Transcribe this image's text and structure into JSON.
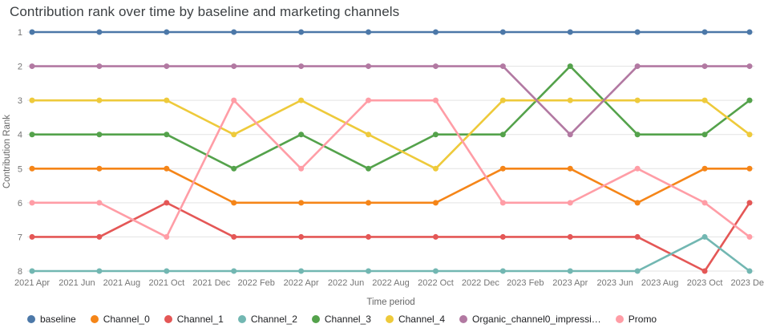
{
  "title": "Contribution rank over time by baseline and marketing channels",
  "chart_data": {
    "type": "line",
    "subtype": "rank-bump",
    "title": "Contribution rank over time by baseline and marketing channels",
    "xlabel": "Time period",
    "ylabel": "Contribution Rank",
    "y_ticks": [
      1,
      2,
      3,
      4,
      5,
      6,
      7,
      8
    ],
    "ylim": [
      1,
      8
    ],
    "y_reversed": true,
    "grid": "horizontal",
    "legend_position": "bottom",
    "x_tick_labels": [
      "2021 Apr",
      "2021 Jun",
      "2021 Aug",
      "2021 Oct",
      "2021 Dec",
      "2022 Feb",
      "2022 Apr",
      "2022 Jun",
      "2022 Aug",
      "2022 Oct",
      "2022 Dec",
      "2023 Feb",
      "2023 Apr",
      "2023 Jun",
      "2023 Aug",
      "2023 Oct",
      "2023 Dec"
    ],
    "x": [
      "2021-04",
      "2021-07",
      "2021-10",
      "2022-01",
      "2022-04",
      "2022-07",
      "2022-10",
      "2023-01",
      "2023-04",
      "2023-07",
      "2023-10",
      "2023-12"
    ],
    "x_months": [
      0,
      3,
      6,
      9,
      12,
      15,
      18,
      21,
      24,
      27,
      30,
      32
    ],
    "series": [
      {
        "name": "baseline",
        "color": "#4c78a8",
        "values": [
          1,
          1,
          1,
          1,
          1,
          1,
          1,
          1,
          1,
          1,
          1,
          1
        ]
      },
      {
        "name": "Channel_0",
        "color": "#f58518",
        "values": [
          5,
          5,
          5,
          6,
          6,
          6,
          6,
          5,
          5,
          6,
          5,
          5
        ]
      },
      {
        "name": "Channel_1",
        "color": "#e45756",
        "values": [
          7,
          7,
          6,
          7,
          7,
          7,
          7,
          7,
          7,
          7,
          8,
          6
        ]
      },
      {
        "name": "Channel_2",
        "color": "#72b7b2",
        "values": [
          8,
          8,
          8,
          8,
          8,
          8,
          8,
          8,
          8,
          8,
          7,
          8
        ]
      },
      {
        "name": "Channel_3",
        "color": "#54a24b",
        "values": [
          4,
          4,
          4,
          5,
          4,
          5,
          4,
          4,
          2,
          4,
          4,
          3
        ]
      },
      {
        "name": "Channel_4",
        "color": "#eeca3b",
        "values": [
          3,
          3,
          3,
          4,
          3,
          4,
          5,
          3,
          3,
          3,
          3,
          4
        ]
      },
      {
        "name": "Organic_channel0_impressi…",
        "color": "#b279a2",
        "values": [
          2,
          2,
          2,
          2,
          2,
          2,
          2,
          2,
          4,
          2,
          2,
          2
        ]
      },
      {
        "name": "Promo",
        "color": "#ff9da6",
        "values": [
          6,
          6,
          7,
          3,
          5,
          3,
          3,
          6,
          6,
          5,
          6,
          7
        ]
      }
    ],
    "grid_color": "#e3e3e3"
  }
}
